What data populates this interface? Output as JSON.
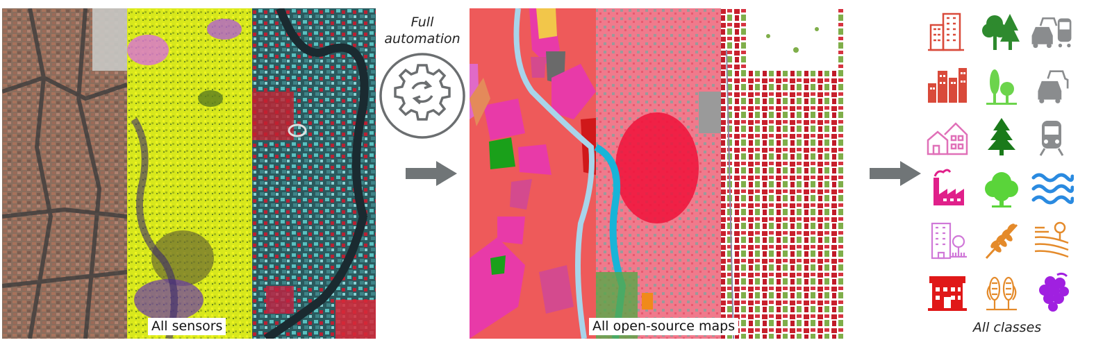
{
  "sensors_label": "All sensors",
  "automation_label_line1": "Full",
  "automation_label_line2": "automation",
  "maps_label": "All open-source maps",
  "classes_label": "All classes",
  "icons": [
    [
      "office-buildings-icon",
      "conifer-deciduous-trees-icon",
      "cars-and-train-icon"
    ],
    [
      "city-buildings-icon",
      "sparse-trees-icon",
      "cars-icon"
    ],
    [
      "houses-icon",
      "conifer-tree-icon",
      "train-icon"
    ],
    [
      "factory-icon",
      "deciduous-tree-icon",
      "water-waves-icon"
    ],
    [
      "apartment-building-icon",
      "wheat-icon",
      "farmland-icon"
    ],
    [
      "red-building-icon",
      "corn-icon",
      "grapes-icon"
    ]
  ],
  "colors": {
    "arrow": "#707577",
    "gear": "#6b6e70",
    "urban_red": "#d94a3a",
    "forest_green": "#2e9a2e",
    "light_green": "#5bd44a",
    "grey": "#8a8c8e",
    "pink": "#e070c0",
    "magenta": "#e0208a",
    "orange": "#e48a2a",
    "blue": "#2a8ae0",
    "purple": "#a020e0",
    "red": "#e01818"
  }
}
